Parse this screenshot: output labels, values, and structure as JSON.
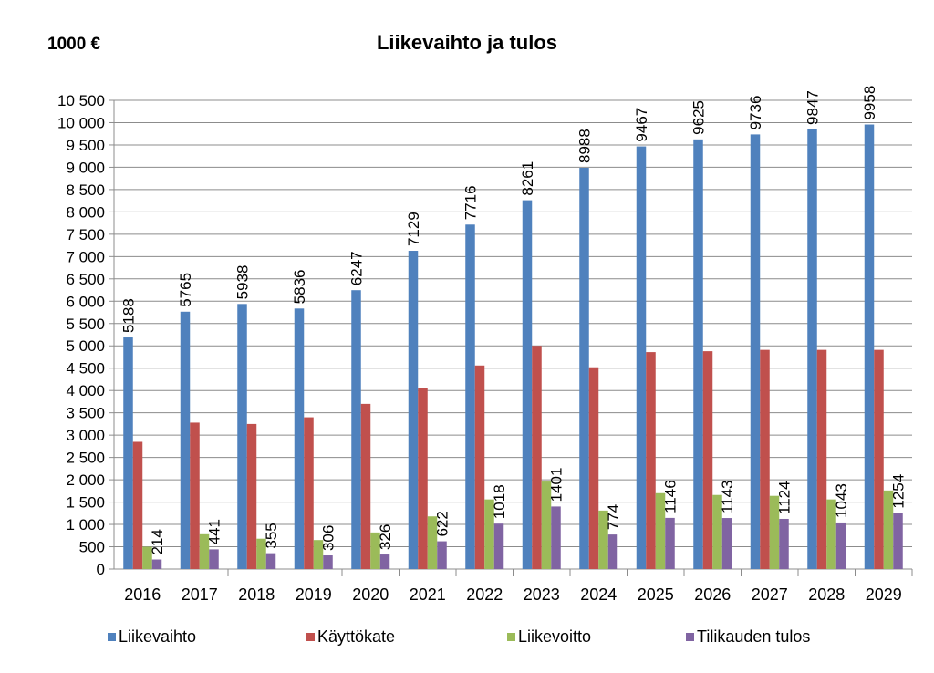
{
  "chart_data": {
    "type": "bar",
    "title": "Liikevaihto ja tulos",
    "unit_label": "1000 €",
    "categories": [
      "2016",
      "2017",
      "2018",
      "2019",
      "2020",
      "2021",
      "2022",
      "2023",
      "2024",
      "2025",
      "2026",
      "2027",
      "2028",
      "2029"
    ],
    "y_ticks": [
      "0",
      "500",
      "1 000",
      "1 500",
      "2 000",
      "2 500",
      "3 000",
      "3 500",
      "4 000",
      "4 500",
      "5 000",
      "5 500",
      "6 000",
      "6 500",
      "7 000",
      "7 500",
      "8 000",
      "8 500",
      "9 000",
      "9 500",
      "10 000",
      "10 500"
    ],
    "ylim": [
      0,
      10500
    ],
    "grid": true,
    "legend_position": "bottom",
    "series": [
      {
        "name": "Liikevaihto",
        "color": "#4F81BD",
        "values": [
          5188,
          5765,
          5938,
          5836,
          6247,
          7129,
          7716,
          8261,
          8988,
          9467,
          9625,
          9736,
          9847,
          9958
        ],
        "show_labels": true
      },
      {
        "name": "Käyttökate",
        "color": "#C0504D",
        "values": [
          2850,
          3280,
          3250,
          3400,
          3700,
          4060,
          4560,
          5000,
          4520,
          4860,
          4880,
          4910,
          4910,
          4910
        ],
        "show_labels": false
      },
      {
        "name": "Liikevoitto",
        "color": "#9BBB59",
        "values": [
          500,
          780,
          680,
          650,
          820,
          1180,
          1560,
          1960,
          1310,
          1700,
          1660,
          1640,
          1560,
          1760
        ],
        "show_labels": false
      },
      {
        "name": "Tilikauden tulos",
        "color": "#8064A2",
        "values": [
          214,
          441,
          355,
          306,
          326,
          622,
          1018,
          1401,
          774,
          1146,
          1143,
          1124,
          1043,
          1254
        ],
        "show_labels": true
      }
    ]
  }
}
